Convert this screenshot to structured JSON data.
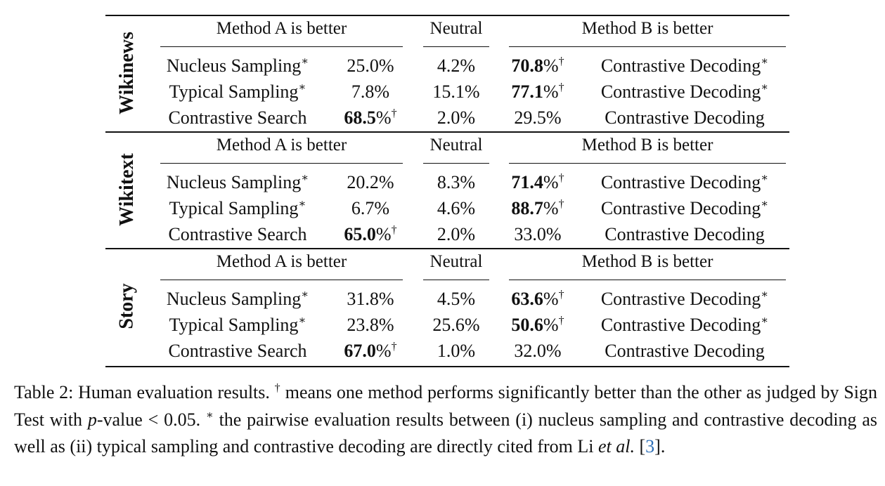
{
  "table": {
    "header": {
      "method_a": "Method A is better",
      "neutral": "Neutral",
      "method_b": "Method B is better"
    },
    "sections": [
      {
        "dataset": "Wikinews",
        "rows": [
          {
            "method_a": "Nucleus Sampling",
            "a_mark": "∗",
            "a_value": "25.0%",
            "a_dagger": "",
            "neutral": "4.2%",
            "b_value": "70.8",
            "b_unit": "%",
            "b_dagger": "†",
            "method_b": "Contrastive Decoding",
            "b_mark": "∗"
          },
          {
            "method_a": "Typical Sampling",
            "a_mark": "∗",
            "a_value": "7.8%",
            "a_dagger": "",
            "neutral": "15.1%",
            "b_value": "77.1",
            "b_unit": "%",
            "b_dagger": "†",
            "method_b": "Contrastive Decoding",
            "b_mark": "∗"
          },
          {
            "method_a": "Contrastive Search",
            "a_mark": "",
            "a_value": "68.5",
            "a_unit": "%",
            "a_dagger": "†",
            "neutral": "2.0%",
            "b_value": "29.5%",
            "b_dagger": "",
            "method_b": "Contrastive Decoding",
            "b_mark": ""
          }
        ]
      },
      {
        "dataset": "Wikitext",
        "rows": [
          {
            "method_a": "Nucleus Sampling",
            "a_mark": "∗",
            "a_value": "20.2%",
            "a_dagger": "",
            "neutral": "8.3%",
            "b_value": "71.4",
            "b_unit": "%",
            "b_dagger": "†",
            "method_b": "Contrastive Decoding",
            "b_mark": "∗"
          },
          {
            "method_a": "Typical Sampling",
            "a_mark": "∗",
            "a_value": "6.7%",
            "a_dagger": "",
            "neutral": "4.6%",
            "b_value": "88.7",
            "b_unit": "%",
            "b_dagger": "†",
            "method_b": "Contrastive Decoding",
            "b_mark": "∗"
          },
          {
            "method_a": "Contrastive Search",
            "a_mark": "",
            "a_value": "65.0",
            "a_unit": "%",
            "a_dagger": "†",
            "neutral": "2.0%",
            "b_value": "33.0%",
            "b_dagger": "",
            "method_b": "Contrastive Decoding",
            "b_mark": ""
          }
        ]
      },
      {
        "dataset": "Story",
        "rows": [
          {
            "method_a": "Nucleus Sampling",
            "a_mark": "∗",
            "a_value": "31.8%",
            "a_dagger": "",
            "neutral": "4.5%",
            "b_value": "63.6",
            "b_unit": "%",
            "b_dagger": "†",
            "method_b": "Contrastive Decoding",
            "b_mark": "∗"
          },
          {
            "method_a": "Typical Sampling",
            "a_mark": "∗",
            "a_value": "23.8%",
            "a_dagger": "",
            "neutral": "25.6%",
            "b_value": "50.6",
            "b_unit": "%",
            "b_dagger": "†",
            "method_b": "Contrastive Decoding",
            "b_mark": "∗"
          },
          {
            "method_a": "Contrastive Search",
            "a_mark": "",
            "a_value": "67.0",
            "a_unit": "%",
            "a_dagger": "†",
            "neutral": "1.0%",
            "b_value": "32.0%",
            "b_dagger": "",
            "method_b": "Contrastive Decoding",
            "b_mark": ""
          }
        ]
      }
    ]
  },
  "caption": {
    "part1": "Table 2: Human evaluation results. ",
    "dagger": "†",
    "part2": " means one method performs significantly better than the other as judged by Sign Test with ",
    "p": "p",
    "part3": "-value < 0.05. ",
    "star": "∗",
    "part4": " the pairwise evaluation results between (i) nucleus sampling and contrastive decoding as well as (ii) typical sampling and contrastive decoding are directly cited from Li ",
    "etal": "et al.",
    "part5": " [",
    "ref": "3",
    "part6": "]."
  }
}
